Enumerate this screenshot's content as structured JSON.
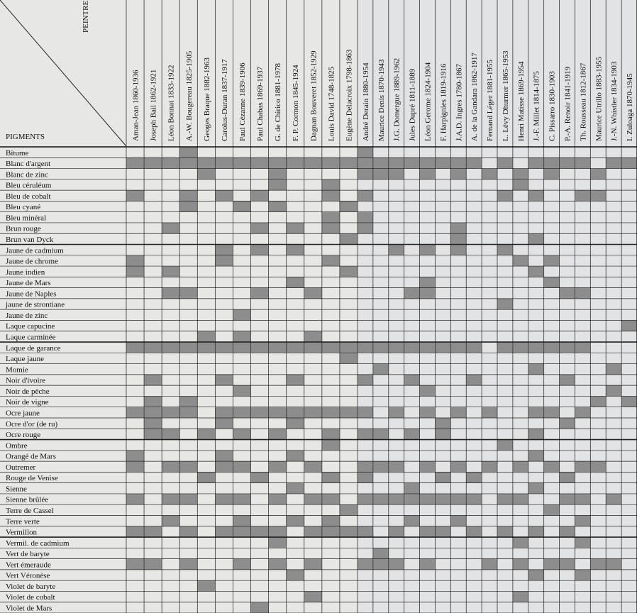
{
  "header": {
    "painters_label": "PEINTRES",
    "pigments_label": "PIGMENTS"
  },
  "painters": [
    "Aman-Jean 1860-1936",
    "Joseph Bail 1862-1921",
    "Léon Bonnat 1833-1922",
    "A.-W. Bougereau 1825-1905",
    "Geoges Braque 1882-1963",
    "Carolus-Duran 1837-1917",
    "Paul Cézanne 1839-1906",
    "Paul Chabas 1869-1937",
    "G. de Chirico 1881-1978",
    "F. P. Cormon 1845-1924",
    "Dagnan Bouveret 1852-1929",
    "Louis David 1748-1825",
    "Eugène Delacroix 1798-1863",
    "André Derain 1880-1954",
    "Maurice Denis 1870-1943",
    "J.G. Domergue 1889-1962",
    "Jules Dupré 1811-1889",
    "Léon Gerome 1824-1904",
    "F. Harpignies 1819-1916",
    "J.A.D. Ingres 1780-1867",
    "A. de la Gandara 1862-1917",
    "Fernand Léger 1881-1955",
    "L. Lévy Dhurmer 1865-1953",
    "Henri Matisse 1869-1954",
    "J.-F. Millet 1814-1875",
    "C. Pissarro 1830-1903",
    "P.-A. Renoir 1841-1919",
    "Th. Rousseau 1812-1867",
    "Maurice Utrillo 1883-1955",
    "J.-N. Whistler 1834-1903",
    "I. Zuloaga 1870-1945"
  ],
  "pigments": [
    {
      "name": "Bitume",
      "used": [
        3,
        13
      ]
    },
    {
      "name": "Blanc d'argent",
      "used": [
        0,
        1,
        2,
        3,
        4,
        5,
        6,
        7,
        8,
        9,
        10,
        11,
        12,
        13,
        14,
        15,
        16,
        17,
        18,
        19,
        20,
        22,
        24,
        25,
        26,
        27,
        29,
        30
      ]
    },
    {
      "name": "Blanc de zinc",
      "used": [
        4,
        8,
        13,
        14,
        15,
        17,
        19,
        21,
        23,
        25,
        28
      ]
    },
    {
      "name": "Bleu céruléum",
      "used": [
        8,
        11,
        23
      ]
    },
    {
      "name": "Bleu de cobalt",
      "used": [
        0,
        3,
        5,
        7,
        11,
        13,
        22,
        24,
        27,
        28
      ]
    },
    {
      "name": "Bleu cyané",
      "used": [
        3,
        6,
        8,
        12
      ]
    },
    {
      "name": "Bleu minéral",
      "used": [
        11,
        13
      ]
    },
    {
      "name": "Brun rouge",
      "used": [
        2,
        7,
        9,
        11,
        13,
        19
      ]
    },
    {
      "name": "Brun van Dyck",
      "used": [
        12,
        19,
        24
      ]
    },
    {
      "name": "Jaune de cadmium",
      "used": [
        5,
        7,
        9,
        15,
        17,
        19,
        22
      ]
    },
    {
      "name": "Jaune de chrome",
      "used": [
        0,
        5,
        11,
        23,
        25
      ]
    },
    {
      "name": "Jaune indien",
      "used": [
        0,
        2,
        12,
        24
      ]
    },
    {
      "name": "Jaune de Mars",
      "used": [
        9,
        17,
        25
      ]
    },
    {
      "name": "Jaune de Naples",
      "used": [
        2,
        3,
        7,
        10,
        16,
        17,
        26,
        27
      ]
    },
    {
      "name": "jaune de strontiane",
      "used": [
        22
      ]
    },
    {
      "name": "Jaune de zinc",
      "used": [
        6
      ]
    },
    {
      "name": "Laque capucine",
      "used": [
        30
      ]
    },
    {
      "name": "Laque carminée",
      "used": [
        4,
        6,
        10
      ]
    },
    {
      "name": "Laque de garance",
      "used": [
        0,
        1,
        2,
        3,
        4,
        5,
        6,
        7,
        8,
        9,
        10,
        11,
        12,
        13,
        14,
        15,
        16,
        17,
        18,
        19,
        20,
        22,
        23,
        24,
        25,
        26,
        27
      ]
    },
    {
      "name": "Laque jaune",
      "used": [
        12
      ]
    },
    {
      "name": "Momie",
      "used": [
        14,
        24,
        29
      ]
    },
    {
      "name": "Noir d'ivoire",
      "used": [
        1,
        5,
        9,
        13,
        16,
        20,
        26
      ]
    },
    {
      "name": "Noir de pêche",
      "used": [
        6,
        17,
        29
      ]
    },
    {
      "name": "Noir de vigne",
      "used": [
        1,
        3,
        28,
        30
      ]
    },
    {
      "name": "Ocre jaune",
      "used": [
        0,
        1,
        2,
        3,
        5,
        6,
        7,
        8,
        9,
        10,
        11,
        12,
        13,
        15,
        17,
        19,
        21,
        24,
        25,
        27
      ]
    },
    {
      "name": "Ocre d'or (de ru)",
      "used": [
        1,
        5,
        9,
        18,
        26
      ]
    },
    {
      "name": "Ocre rouge",
      "used": [
        1,
        2,
        4,
        6,
        8,
        11,
        13,
        14,
        16,
        18,
        24
      ]
    },
    {
      "name": "Ombre",
      "used": [
        11,
        22
      ]
    },
    {
      "name": "Orangé de Mars",
      "used": [
        0,
        5,
        9,
        24
      ]
    },
    {
      "name": "Outremer",
      "used": [
        0,
        2,
        3,
        5,
        6,
        8,
        10,
        13,
        14,
        15,
        17,
        19,
        21,
        23,
        25,
        27,
        28
      ]
    },
    {
      "name": "Rouge de Venise",
      "used": [
        4,
        7,
        11,
        13,
        18,
        20,
        26
      ]
    },
    {
      "name": "Sienne",
      "used": [
        9,
        16,
        24
      ]
    },
    {
      "name": "Sienne brûlée",
      "used": [
        0,
        2,
        3,
        5,
        6,
        8,
        10,
        11,
        13,
        14,
        15,
        16,
        17,
        18,
        19,
        20,
        22,
        23,
        26,
        27,
        29
      ]
    },
    {
      "name": "Terre de Cassel",
      "used": [
        12,
        25
      ]
    },
    {
      "name": "Terre verte",
      "used": [
        2,
        6,
        9,
        11,
        16,
        19,
        27
      ]
    },
    {
      "name": "Vermillon",
      "used": [
        0,
        1,
        3,
        5,
        6,
        7,
        8,
        10,
        11,
        12,
        13,
        15,
        17,
        18,
        20,
        22,
        24,
        26
      ]
    },
    {
      "name": "Vermil. de cadmium",
      "used": [
        8,
        23,
        27
      ]
    },
    {
      "name": "Vert de baryte",
      "used": [
        14
      ]
    },
    {
      "name": "Vert émeraude",
      "used": [
        0,
        1,
        3,
        6,
        8,
        10,
        13,
        14,
        15,
        17,
        21,
        23,
        25,
        26,
        28,
        29
      ]
    },
    {
      "name": "Vert Véronèse",
      "used": [
        9,
        24,
        27
      ]
    },
    {
      "name": "Violet de baryte",
      "used": [
        4
      ]
    },
    {
      "name": "Violet de cobalt",
      "used": [
        10,
        23
      ]
    },
    {
      "name": "Violet de Mars",
      "used": [
        7
      ]
    }
  ]
}
